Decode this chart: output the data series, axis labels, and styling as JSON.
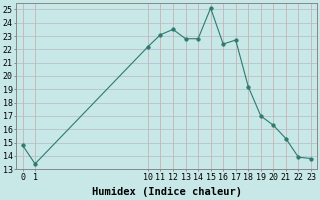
{
  "xlabel": "Humidex (Indice chaleur)",
  "ylabel": "",
  "x": [
    0,
    1,
    10,
    11,
    12,
    13,
    14,
    15,
    16,
    17,
    18,
    19,
    20,
    21,
    22,
    23
  ],
  "y": [
    14.8,
    13.4,
    22.2,
    23.1,
    23.5,
    22.8,
    22.8,
    25.1,
    22.4,
    22.7,
    19.2,
    17.0,
    16.3,
    15.3,
    13.9,
    13.8
  ],
  "line_color": "#2d7a6e",
  "marker": "o",
  "marker_size": 2.5,
  "bg_color": "#c8e8e8",
  "grid_color": "#a8c8c8",
  "ylim": [
    13,
    25.5
  ],
  "xlim": [
    -0.5,
    23.5
  ],
  "yticks": [
    13,
    14,
    15,
    16,
    17,
    18,
    19,
    20,
    21,
    22,
    23,
    24,
    25
  ],
  "xticks": [
    0,
    1,
    10,
    11,
    12,
    13,
    14,
    15,
    16,
    17,
    18,
    19,
    20,
    21,
    22,
    23
  ],
  "xlabel_fontsize": 7.5,
  "tick_fontsize": 6.0
}
